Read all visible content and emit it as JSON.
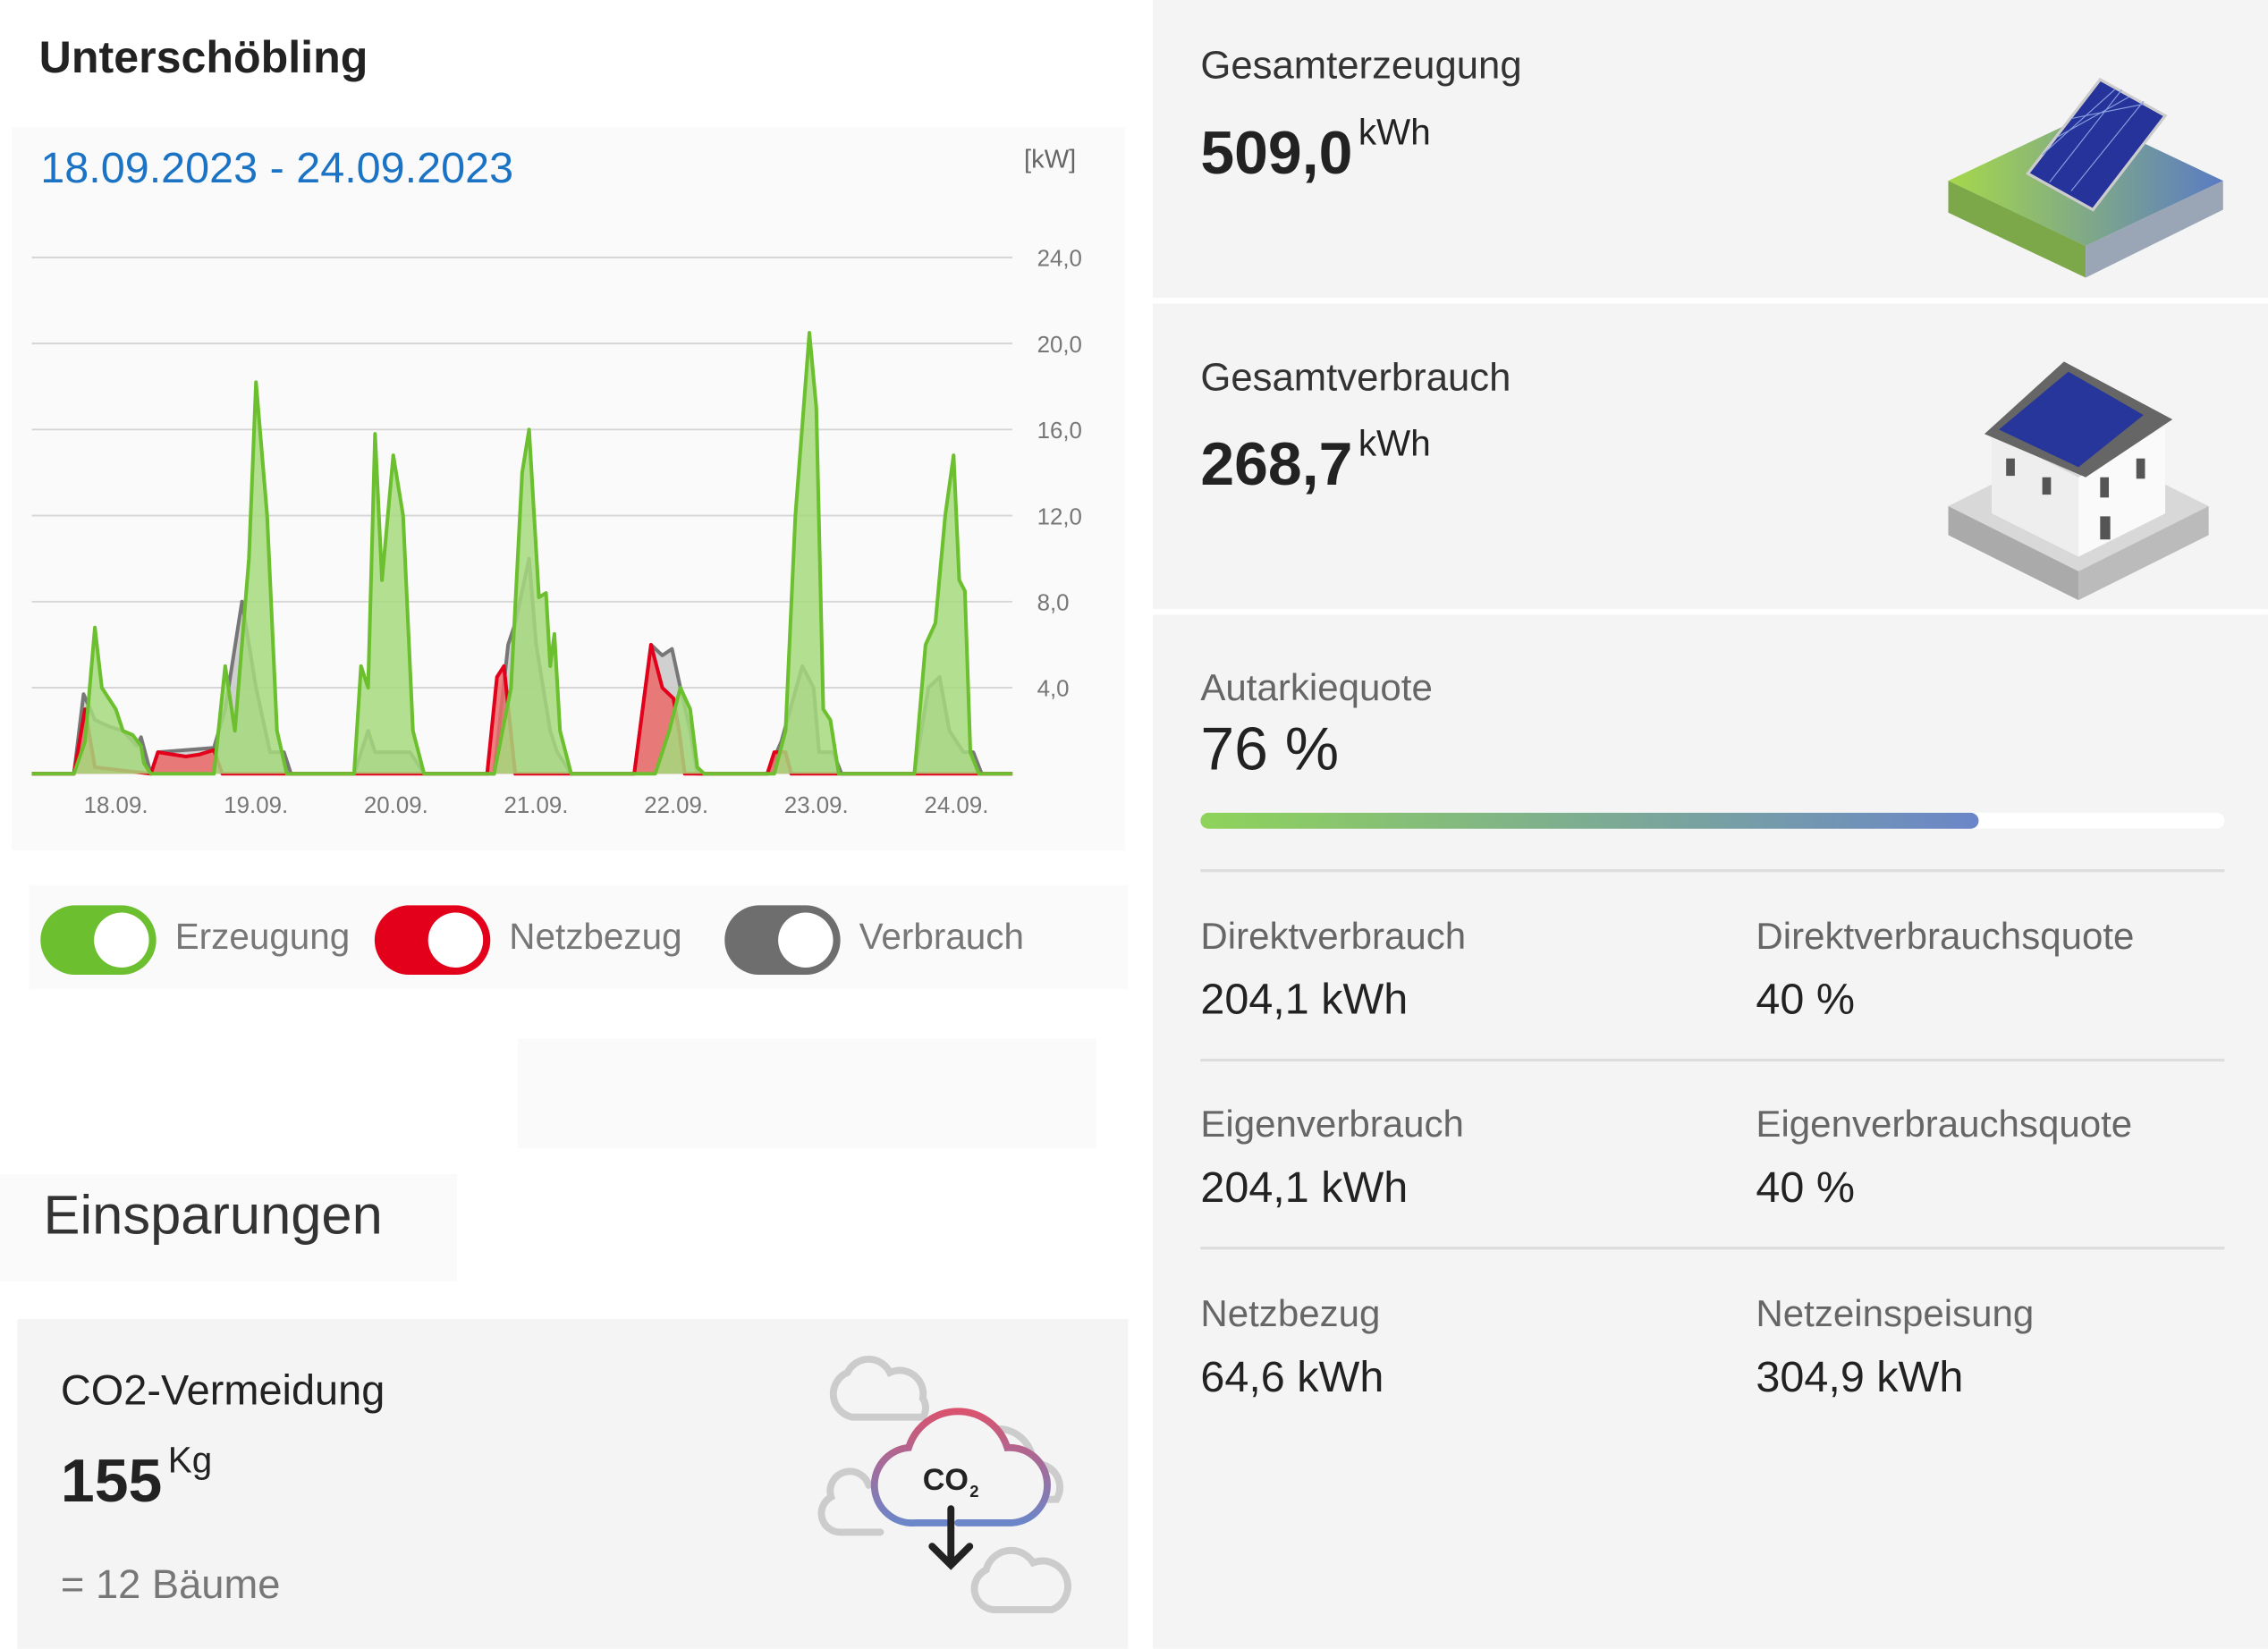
{
  "header": {
    "title": "Unterschöbling",
    "date_range": "18.09.2023 - 24.09.2023",
    "unit": "[kW]"
  },
  "chart_data": {
    "type": "area",
    "ylabel": "[kW]",
    "ylim": [
      0,
      24
    ],
    "xlim": [
      0,
      7
    ],
    "yticks": [
      "24,0",
      "20,0",
      "16,0",
      "12,0",
      "8,0",
      "4,0"
    ],
    "ytick_values": [
      24,
      20,
      16,
      12,
      8,
      4
    ],
    "xticks": [
      "18.09.",
      "19.09.",
      "20.09.",
      "21.09.",
      "22.09.",
      "23.09.",
      "24.09."
    ],
    "xtick_values": [
      0.6,
      1.6,
      2.6,
      3.6,
      4.6,
      5.6,
      6.6
    ],
    "series": [
      {
        "name": "Verbrauch",
        "color": "#777777",
        "fill": "#c8c8c8",
        "points": [
          [
            0,
            0
          ],
          [
            0.3,
            0
          ],
          [
            0.37,
            3.7
          ],
          [
            0.45,
            2.5
          ],
          [
            0.55,
            2.2
          ],
          [
            0.65,
            2
          ],
          [
            0.75,
            1.3
          ],
          [
            0.78,
            1.7
          ],
          [
            0.85,
            0
          ],
          [
            0.9,
            1
          ],
          [
            1.3,
            1.2
          ],
          [
            1.38,
            3
          ],
          [
            1.5,
            8
          ],
          [
            1.6,
            4
          ],
          [
            1.7,
            1
          ],
          [
            1.8,
            1
          ],
          [
            1.85,
            0
          ],
          [
            2.3,
            0
          ],
          [
            2.4,
            2
          ],
          [
            2.45,
            1
          ],
          [
            2.6,
            1
          ],
          [
            2.7,
            1
          ],
          [
            2.8,
            0
          ],
          [
            3.3,
            0
          ],
          [
            3.4,
            6
          ],
          [
            3.45,
            7
          ],
          [
            3.55,
            10
          ],
          [
            3.6,
            6
          ],
          [
            3.7,
            2
          ],
          [
            3.75,
            1
          ],
          [
            3.85,
            0
          ],
          [
            4.3,
            0
          ],
          [
            4.42,
            6
          ],
          [
            4.5,
            5.5
          ],
          [
            4.57,
            5.8
          ],
          [
            4.63,
            4
          ],
          [
            4.7,
            2
          ],
          [
            4.75,
            0
          ],
          [
            5.25,
            0
          ],
          [
            5.35,
            1.5
          ],
          [
            5.5,
            5
          ],
          [
            5.58,
            4
          ],
          [
            5.62,
            1
          ],
          [
            5.72,
            1
          ],
          [
            5.78,
            0
          ],
          [
            6.3,
            0
          ],
          [
            6.4,
            4
          ],
          [
            6.48,
            4.5
          ],
          [
            6.55,
            2
          ],
          [
            6.65,
            1
          ],
          [
            6.72,
            1
          ],
          [
            6.78,
            0
          ],
          [
            7,
            0
          ]
        ]
      },
      {
        "name": "Netzbezug",
        "color": "#e3001b",
        "fill": "#ec6a6a",
        "points": [
          [
            0,
            0
          ],
          [
            0.3,
            0
          ],
          [
            0.38,
            3
          ],
          [
            0.45,
            0.3
          ],
          [
            0.85,
            0
          ],
          [
            0.9,
            1
          ],
          [
            1.0,
            0.9
          ],
          [
            1.1,
            0.8
          ],
          [
            1.2,
            0.9
          ],
          [
            1.3,
            1.1
          ],
          [
            1.36,
            0
          ],
          [
            3.25,
            0
          ],
          [
            3.32,
            4.5
          ],
          [
            3.37,
            5
          ],
          [
            3.45,
            0
          ],
          [
            4.3,
            0
          ],
          [
            4.42,
            6
          ],
          [
            4.5,
            4
          ],
          [
            4.58,
            3.5
          ],
          [
            4.62,
            2
          ],
          [
            4.66,
            0
          ],
          [
            5.25,
            0
          ],
          [
            5.3,
            1
          ],
          [
            5.38,
            1
          ],
          [
            5.42,
            0
          ],
          [
            7,
            0
          ]
        ]
      },
      {
        "name": "Erzeugung",
        "color": "#6cbf2e",
        "fill": "#a4d97c",
        "points": [
          [
            0,
            0
          ],
          [
            0.3,
            0
          ],
          [
            0.38,
            1.5
          ],
          [
            0.45,
            6.8
          ],
          [
            0.5,
            4
          ],
          [
            0.6,
            3
          ],
          [
            0.65,
            2
          ],
          [
            0.72,
            1.8
          ],
          [
            0.78,
            1.3
          ],
          [
            0.8,
            0.5
          ],
          [
            0.85,
            0
          ],
          [
            1.3,
            0
          ],
          [
            1.38,
            5
          ],
          [
            1.45,
            2
          ],
          [
            1.55,
            10
          ],
          [
            1.6,
            18.2
          ],
          [
            1.68,
            12
          ],
          [
            1.75,
            2
          ],
          [
            1.82,
            0
          ],
          [
            2.3,
            0
          ],
          [
            2.35,
            5
          ],
          [
            2.4,
            4
          ],
          [
            2.45,
            15.8
          ],
          [
            2.5,
            9
          ],
          [
            2.58,
            14.8
          ],
          [
            2.65,
            12
          ],
          [
            2.72,
            2
          ],
          [
            2.8,
            0
          ],
          [
            3.3,
            0
          ],
          [
            3.42,
            4
          ],
          [
            3.5,
            14
          ],
          [
            3.55,
            16
          ],
          [
            3.62,
            8.2
          ],
          [
            3.67,
            8.4
          ],
          [
            3.7,
            5
          ],
          [
            3.73,
            6.5
          ],
          [
            3.77,
            2
          ],
          [
            3.85,
            0
          ],
          [
            4.45,
            0
          ],
          [
            4.55,
            2
          ],
          [
            4.63,
            4
          ],
          [
            4.7,
            3
          ],
          [
            4.75,
            0.3
          ],
          [
            4.8,
            0
          ],
          [
            5.3,
            0
          ],
          [
            5.38,
            2
          ],
          [
            5.45,
            12
          ],
          [
            5.55,
            20.5
          ],
          [
            5.6,
            17
          ],
          [
            5.65,
            3
          ],
          [
            5.7,
            2.5
          ],
          [
            5.76,
            0
          ],
          [
            6.3,
            0
          ],
          [
            6.38,
            6
          ],
          [
            6.45,
            7
          ],
          [
            6.52,
            12
          ],
          [
            6.58,
            14.8
          ],
          [
            6.62,
            9
          ],
          [
            6.66,
            8.5
          ],
          [
            6.7,
            1
          ],
          [
            6.76,
            0
          ],
          [
            7,
            0
          ]
        ]
      }
    ]
  },
  "toggles": [
    {
      "label": "Erzeugung",
      "color": "#6cbf2e",
      "on": true
    },
    {
      "label": "Netzbezug",
      "color": "#e3001b",
      "on": true
    },
    {
      "label": "Verbrauch",
      "color": "#6e6e6e",
      "on": true
    }
  ],
  "savings": {
    "title": "Einsparungen",
    "co2_title": "CO2-Vermeidung",
    "co2_value": "155",
    "co2_unit": "Kg",
    "trees": "= 12 Bäume",
    "icon_text": "CO",
    "icon_sub": "2"
  },
  "summary": {
    "generation": {
      "label": "Gesamterzeugung",
      "value": "509,0",
      "unit": "kWh"
    },
    "consumption": {
      "label": "Gesamtverbrauch",
      "value": "268,7",
      "unit": "kWh"
    },
    "autarky": {
      "label": "Autarkiequote",
      "value": "76 %",
      "percent": 76
    },
    "stats": [
      {
        "label": "Direktverbrauch",
        "value": "204,1 kWh"
      },
      {
        "label": "Direktverbrauchsquote",
        "value": "40 %"
      },
      {
        "label": "Eigenverbrauch",
        "value": "204,1 kWh"
      },
      {
        "label": "Eigenverbrauchsquote",
        "value": "40 %"
      },
      {
        "label": "Netzbezug",
        "value": "64,6 kWh"
      },
      {
        "label": "Netzeinspeisung",
        "value": "304,9 kWh"
      }
    ]
  }
}
